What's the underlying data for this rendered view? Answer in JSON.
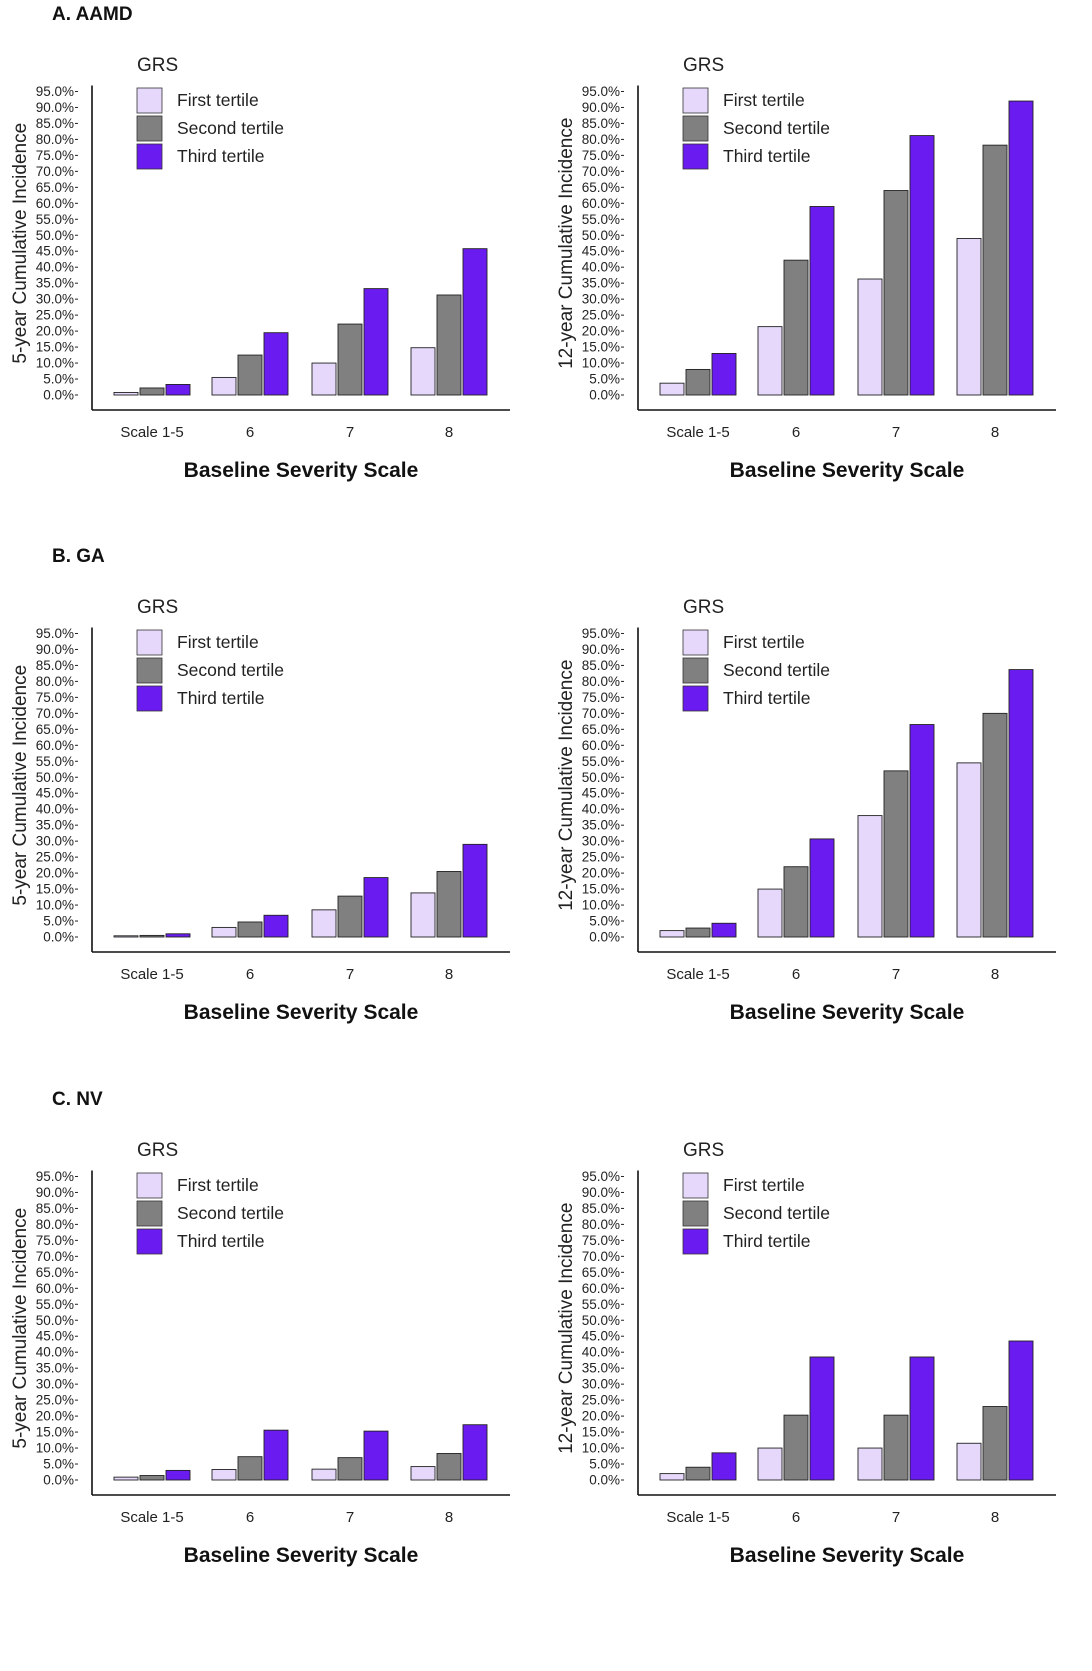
{
  "sections": [
    {
      "title": "A. AAMD"
    },
    {
      "title": "B. GA"
    },
    {
      "title": "C. NV"
    }
  ],
  "colors": {
    "First tertile": "#e5d8fb",
    "Second tertile": "#808080",
    "Third tertile": "#6a1cf0"
  },
  "chart_data": [
    {
      "type": "bar",
      "section": "A. AAMD",
      "ylabel": "5-year Cumulative Incidence",
      "xlabel": "Baseline Severity Scale",
      "legend_title": "GRS",
      "legend_position": "top-left",
      "categories": [
        "Scale 1-5",
        "6",
        "7",
        "8"
      ],
      "yticks": [
        "0.0%",
        "5.0%",
        "10.0%",
        "15.0%",
        "20.0%",
        "25.0%",
        "30.0%",
        "35.0%",
        "40.0%",
        "45.0%",
        "50.0%",
        "55.0%",
        "60.0%",
        "65.0%",
        "70.0%",
        "75.0%",
        "80.0%",
        "85.0%",
        "90.0%",
        "95.0%"
      ],
      "ylim": [
        0,
        95
      ],
      "series": [
        {
          "name": "First tertile",
          "values": [
            0.8,
            5.5,
            10.0,
            14.8
          ]
        },
        {
          "name": "Second tertile",
          "values": [
            2.2,
            12.5,
            22.2,
            31.3
          ]
        },
        {
          "name": "Third tertile",
          "values": [
            3.3,
            19.5,
            33.3,
            45.8
          ]
        }
      ]
    },
    {
      "type": "bar",
      "section": "A. AAMD",
      "ylabel": "12-year Cumulative Incidence",
      "xlabel": "Baseline Severity Scale",
      "legend_title": "GRS",
      "legend_position": "top-left",
      "categories": [
        "Scale 1-5",
        "6",
        "7",
        "8"
      ],
      "yticks": [
        "0.0%",
        "5.0%",
        "10.0%",
        "15.0%",
        "20.0%",
        "25.0%",
        "30.0%",
        "35.0%",
        "40.0%",
        "45.0%",
        "50.0%",
        "55.0%",
        "60.0%",
        "65.0%",
        "70.0%",
        "75.0%",
        "80.0%",
        "85.0%",
        "90.0%",
        "95.0%"
      ],
      "ylim": [
        0,
        95
      ],
      "series": [
        {
          "name": "First tertile",
          "values": [
            3.7,
            21.4,
            36.3,
            49.0
          ]
        },
        {
          "name": "Second tertile",
          "values": [
            8.0,
            42.2,
            64.0,
            78.2
          ]
        },
        {
          "name": "Third tertile",
          "values": [
            13.0,
            59.0,
            81.2,
            92.0
          ]
        }
      ]
    },
    {
      "type": "bar",
      "section": "B. GA",
      "ylabel": "5-year Cumulative Incidence",
      "xlabel": "Baseline Severity Scale",
      "legend_title": "GRS",
      "legend_position": "top-left",
      "categories": [
        "Scale 1-5",
        "6",
        "7",
        "8"
      ],
      "yticks": [
        "0.0%",
        "5.0%",
        "10.0%",
        "15.0%",
        "20.0%",
        "25.0%",
        "30.0%",
        "35.0%",
        "40.0%",
        "45.0%",
        "50.0%",
        "55.0%",
        "60.0%",
        "65.0%",
        "70.0%",
        "75.0%",
        "80.0%",
        "85.0%",
        "90.0%",
        "95.0%"
      ],
      "ylim": [
        0,
        95
      ],
      "series": [
        {
          "name": "First tertile",
          "values": [
            0.2,
            3.0,
            8.5,
            13.8
          ]
        },
        {
          "name": "Second tertile",
          "values": [
            0.5,
            4.7,
            12.8,
            20.5
          ]
        },
        {
          "name": "Third tertile",
          "values": [
            1.0,
            6.8,
            18.6,
            29.0
          ]
        }
      ]
    },
    {
      "type": "bar",
      "section": "B. GA",
      "ylabel": "12-year Cumulative Incidence",
      "xlabel": "Baseline Severity Scale",
      "legend_title": "GRS",
      "legend_position": "top-left",
      "categories": [
        "Scale 1-5",
        "6",
        "7",
        "8"
      ],
      "yticks": [
        "0.0%",
        "5.0%",
        "10.0%",
        "15.0%",
        "20.0%",
        "25.0%",
        "30.0%",
        "35.0%",
        "40.0%",
        "45.0%",
        "50.0%",
        "55.0%",
        "60.0%",
        "65.0%",
        "70.0%",
        "75.0%",
        "80.0%",
        "85.0%",
        "90.0%",
        "95.0%"
      ],
      "ylim": [
        0,
        95
      ],
      "series": [
        {
          "name": "First tertile",
          "values": [
            2.0,
            15.0,
            38.0,
            54.5
          ]
        },
        {
          "name": "Second tertile",
          "values": [
            2.8,
            22.0,
            52.0,
            70.0
          ]
        },
        {
          "name": "Third tertile",
          "values": [
            4.3,
            30.7,
            66.5,
            83.7
          ]
        }
      ]
    },
    {
      "type": "bar",
      "section": "C. NV",
      "ylabel": "5-year Cumulative Incidence",
      "xlabel": "Baseline Severity Scale",
      "legend_title": "GRS",
      "legend_position": "top-left",
      "categories": [
        "Scale 1-5",
        "6",
        "7",
        "8"
      ],
      "yticks": [
        "0.0%",
        "5.0%",
        "10.0%",
        "15.0%",
        "20.0%",
        "25.0%",
        "30.0%",
        "35.0%",
        "40.0%",
        "45.0%",
        "50.0%",
        "55.0%",
        "60.0%",
        "65.0%",
        "70.0%",
        "75.0%",
        "80.0%",
        "85.0%",
        "90.0%",
        "95.0%"
      ],
      "ylim": [
        0,
        95
      ],
      "series": [
        {
          "name": "First tertile",
          "values": [
            0.9,
            3.3,
            3.4,
            4.2
          ]
        },
        {
          "name": "Second tertile",
          "values": [
            1.4,
            7.3,
            7.0,
            8.3
          ]
        },
        {
          "name": "Third tertile",
          "values": [
            3.0,
            15.6,
            15.3,
            17.3
          ]
        }
      ]
    },
    {
      "type": "bar",
      "section": "C. NV",
      "ylabel": "12-year Cumulative Incidence",
      "xlabel": "Baseline Severity Scale",
      "legend_title": "GRS",
      "legend_position": "top-left",
      "categories": [
        "Scale 1-5",
        "6",
        "7",
        "8"
      ],
      "yticks": [
        "0.0%",
        "5.0%",
        "10.0%",
        "15.0%",
        "20.0%",
        "25.0%",
        "30.0%",
        "35.0%",
        "40.0%",
        "45.0%",
        "50.0%",
        "55.0%",
        "60.0%",
        "65.0%",
        "70.0%",
        "75.0%",
        "80.0%",
        "85.0%",
        "90.0%",
        "95.0%"
      ],
      "ylim": [
        0,
        95
      ],
      "series": [
        {
          "name": "First tertile",
          "values": [
            2.0,
            10.0,
            10.0,
            11.5
          ]
        },
        {
          "name": "Second tertile",
          "values": [
            4.0,
            20.3,
            20.3,
            23.0
          ]
        },
        {
          "name": "Third tertile",
          "values": [
            8.5,
            38.5,
            38.5,
            43.5
          ]
        }
      ]
    }
  ]
}
